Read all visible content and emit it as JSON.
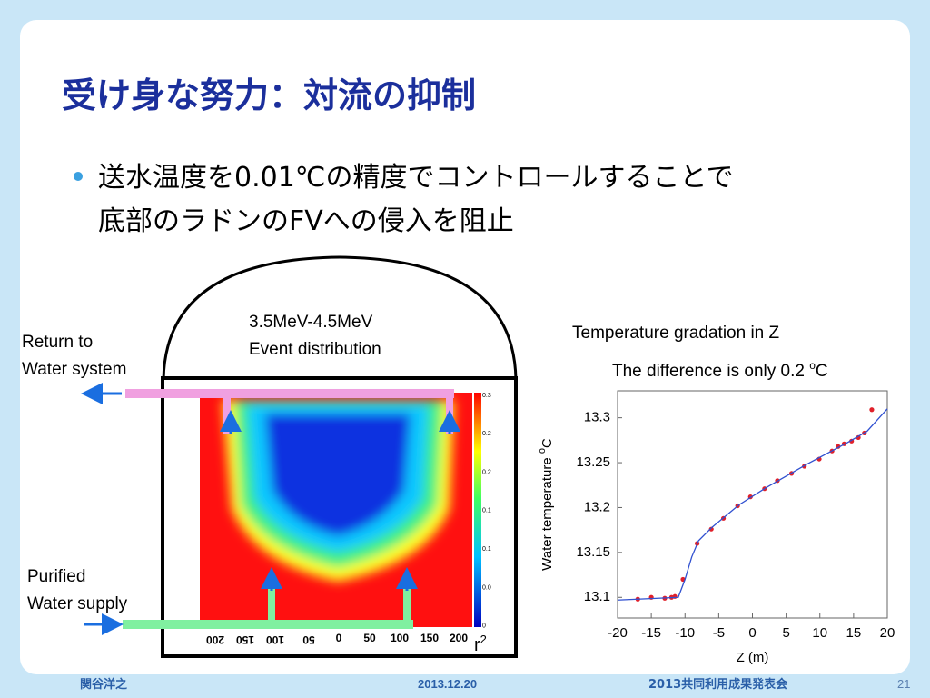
{
  "title": "受け身な努力：対流の抑制",
  "bullet": [
    "送水温度を0.01℃の精度でコントロールすることで",
    "底部のラドンのFVへの侵入を阻止"
  ],
  "diagram": {
    "energy_label": [
      "3.5MeV-4.5MeV",
      "Event distribution"
    ],
    "return_label": [
      "Return to",
      "Water system"
    ],
    "supply_label": [
      "Purified",
      "Water supply"
    ],
    "r_axis_labels": [
      "200",
      "150",
      "100",
      "50",
      "0",
      "50",
      "100",
      "150",
      "200"
    ],
    "colorbar_labels": [
      "0.3",
      "0.2",
      "0.2",
      "0.1",
      "0.1",
      "0.0",
      "0"
    ],
    "r_label": {
      "base": "r",
      "sup": "2"
    }
  },
  "chart_caption": "Temperature gradation in Z",
  "chart_note": {
    "text": "The difference is only 0.2 ",
    "sup": "o",
    "unit": "C"
  },
  "chart_data": {
    "type": "scatter",
    "xlabel": "Z (m)",
    "ylabel": {
      "text": "Water temperature ",
      "sup": "o",
      "unit": "C"
    },
    "xlim": [
      -20,
      20
    ],
    "ylim": [
      13.077,
      13.33
    ],
    "xticks": [
      -20,
      -15,
      -10,
      -5,
      0,
      5,
      10,
      15,
      20
    ],
    "yticks": [
      13.1,
      13.15,
      13.2,
      13.25,
      13.3
    ],
    "series": [
      {
        "color": "#e0202a",
        "x": [
          -17,
          -15,
          -13,
          -12,
          -11.5,
          -10.3,
          -8.2,
          -6.1,
          -4.3,
          -2.2,
          -0.3,
          1.8,
          3.7,
          5.8,
          7.7,
          9.9,
          11.8,
          12.7,
          13.6,
          14.7,
          15.7,
          16.6,
          17.7
        ],
        "values": [
          13.098,
          13.1,
          13.099,
          13.1,
          13.101,
          13.12,
          13.16,
          13.176,
          13.188,
          13.202,
          13.212,
          13.221,
          13.23,
          13.238,
          13.246,
          13.254,
          13.263,
          13.268,
          13.271,
          13.274,
          13.278,
          13.283,
          13.309
        ]
      },
      {
        "color": "#3050d0",
        "type": "line",
        "x": [
          -20,
          -11,
          -10,
          -9,
          -8,
          -6,
          -2,
          2,
          8,
          14,
          17,
          20
        ],
        "values": [
          13.097,
          13.1,
          13.12,
          13.145,
          13.163,
          13.178,
          13.203,
          13.222,
          13.248,
          13.272,
          13.285,
          13.31
        ]
      }
    ]
  },
  "footer": {
    "author": "関谷洋之",
    "date": "2013.12.20",
    "event": "2013共同利用成果発表会",
    "page": "21"
  }
}
